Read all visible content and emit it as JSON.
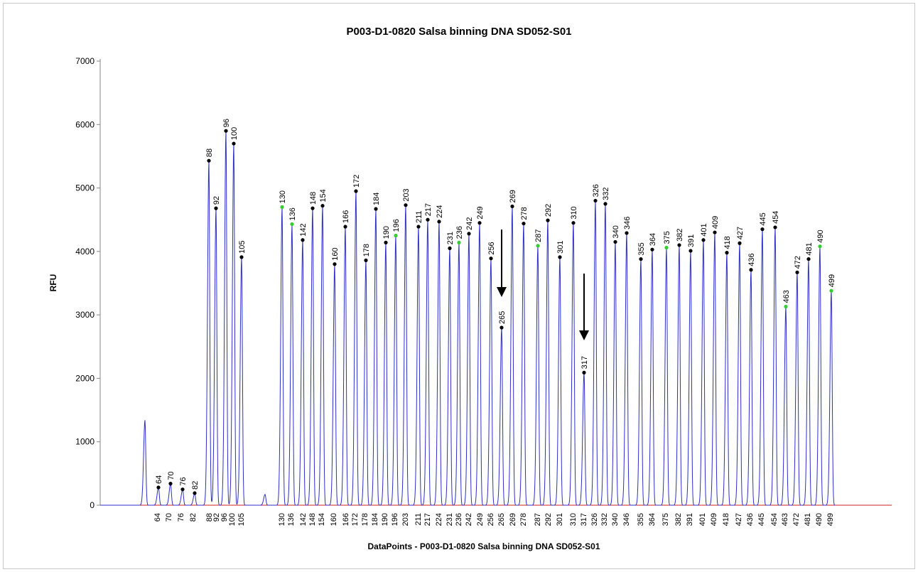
{
  "chart_data": {
    "type": "line",
    "title": "P003-D1-0820 Salsa binning DNA SD052-S01",
    "xlabel": "DataPoints - P003-D1-0820 Salsa binning DNA SD052-S01",
    "ylabel": "RFU",
    "ylim": [
      0,
      7000
    ],
    "yticks": [
      0,
      1000,
      2000,
      3000,
      4000,
      5000,
      6000,
      7000
    ],
    "grid": false,
    "colors": {
      "trace": "#2f2fcc",
      "baseline": "#cc2222",
      "peak_marker": "#000000",
      "highlight_marker": "#33cc33",
      "arrow": "#000000"
    },
    "unlabeled_peaks": [
      1340,
      170
    ],
    "peaks": [
      {
        "size": "64",
        "rfu": 280,
        "marker": "black"
      },
      {
        "size": "70",
        "rfu": 340,
        "marker": "black"
      },
      {
        "size": "76",
        "rfu": 250,
        "marker": "black"
      },
      {
        "size": "82",
        "rfu": 190,
        "marker": "black"
      },
      {
        "size": "88",
        "rfu": 5430,
        "marker": "black"
      },
      {
        "size": "92",
        "rfu": 4680,
        "marker": "black"
      },
      {
        "size": "96",
        "rfu": 5900,
        "marker": "black"
      },
      {
        "size": "100",
        "rfu": 5700,
        "marker": "black"
      },
      {
        "size": "105",
        "rfu": 3910,
        "marker": "black"
      },
      {
        "size": "130",
        "rfu": 4700,
        "marker": "green"
      },
      {
        "size": "136",
        "rfu": 4430,
        "marker": "green"
      },
      {
        "size": "142",
        "rfu": 4180,
        "marker": "black"
      },
      {
        "size": "148",
        "rfu": 4680,
        "marker": "black"
      },
      {
        "size": "154",
        "rfu": 4720,
        "marker": "black"
      },
      {
        "size": "160",
        "rfu": 3800,
        "marker": "black"
      },
      {
        "size": "166",
        "rfu": 4390,
        "marker": "black"
      },
      {
        "size": "172",
        "rfu": 4950,
        "marker": "black"
      },
      {
        "size": "178",
        "rfu": 3860,
        "marker": "black"
      },
      {
        "size": "184",
        "rfu": 4670,
        "marker": "black"
      },
      {
        "size": "190",
        "rfu": 4140,
        "marker": "black"
      },
      {
        "size": "196",
        "rfu": 4250,
        "marker": "green"
      },
      {
        "size": "203",
        "rfu": 4730,
        "marker": "black"
      },
      {
        "size": "211",
        "rfu": 4390,
        "marker": "black"
      },
      {
        "size": "217",
        "rfu": 4500,
        "marker": "black"
      },
      {
        "size": "224",
        "rfu": 4470,
        "marker": "black"
      },
      {
        "size": "231",
        "rfu": 4050,
        "marker": "black"
      },
      {
        "size": "236",
        "rfu": 4140,
        "marker": "green"
      },
      {
        "size": "242",
        "rfu": 4280,
        "marker": "black"
      },
      {
        "size": "249",
        "rfu": 4450,
        "marker": "black"
      },
      {
        "size": "256",
        "rfu": 3890,
        "marker": "black"
      },
      {
        "size": "265",
        "rfu": 2800,
        "marker": "black"
      },
      {
        "size": "269",
        "rfu": 4710,
        "marker": "black"
      },
      {
        "size": "278",
        "rfu": 4440,
        "marker": "black"
      },
      {
        "size": "287",
        "rfu": 4090,
        "marker": "green"
      },
      {
        "size": "292",
        "rfu": 4490,
        "marker": "black"
      },
      {
        "size": "301",
        "rfu": 3910,
        "marker": "black"
      },
      {
        "size": "310",
        "rfu": 4450,
        "marker": "black"
      },
      {
        "size": "317",
        "rfu": 2090,
        "marker": "black"
      },
      {
        "size": "326",
        "rfu": 4800,
        "marker": "black"
      },
      {
        "size": "332",
        "rfu": 4750,
        "marker": "black"
      },
      {
        "size": "340",
        "rfu": 4150,
        "marker": "black"
      },
      {
        "size": "346",
        "rfu": 4290,
        "marker": "black"
      },
      {
        "size": "355",
        "rfu": 3880,
        "marker": "black"
      },
      {
        "size": "364",
        "rfu": 4030,
        "marker": "black"
      },
      {
        "size": "375",
        "rfu": 4060,
        "marker": "green"
      },
      {
        "size": "382",
        "rfu": 4100,
        "marker": "black"
      },
      {
        "size": "391",
        "rfu": 4010,
        "marker": "black"
      },
      {
        "size": "401",
        "rfu": 4180,
        "marker": "black"
      },
      {
        "size": "409",
        "rfu": 4300,
        "marker": "black"
      },
      {
        "size": "418",
        "rfu": 3980,
        "marker": "black"
      },
      {
        "size": "427",
        "rfu": 4130,
        "marker": "black"
      },
      {
        "size": "436",
        "rfu": 3710,
        "marker": "black"
      },
      {
        "size": "445",
        "rfu": 4350,
        "marker": "black"
      },
      {
        "size": "454",
        "rfu": 4380,
        "marker": "black"
      },
      {
        "size": "463",
        "rfu": 3130,
        "marker": "green"
      },
      {
        "size": "472",
        "rfu": 3670,
        "marker": "black"
      },
      {
        "size": "481",
        "rfu": 3880,
        "marker": "black"
      },
      {
        "size": "490",
        "rfu": 4080,
        "marker": "green"
      },
      {
        "size": "499",
        "rfu": 3380,
        "marker": "green"
      }
    ],
    "arrows_point_to": [
      "265",
      "317"
    ]
  }
}
